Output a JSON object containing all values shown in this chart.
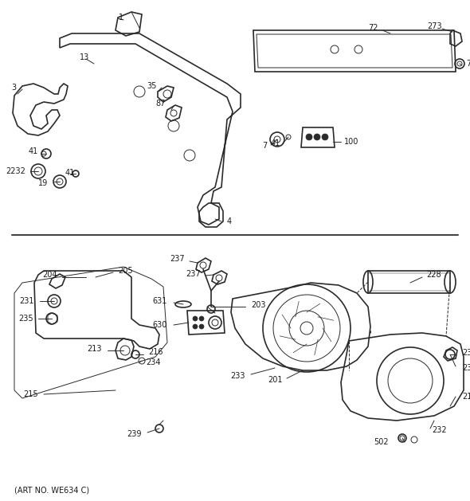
{
  "bg_color": "#ffffff",
  "lc": "#2a2a2a",
  "tc": "#1a1a1a",
  "figsize": [
    5.9,
    6.29
  ],
  "dpi": 100,
  "footer": "(ART NO. WE634 C)"
}
